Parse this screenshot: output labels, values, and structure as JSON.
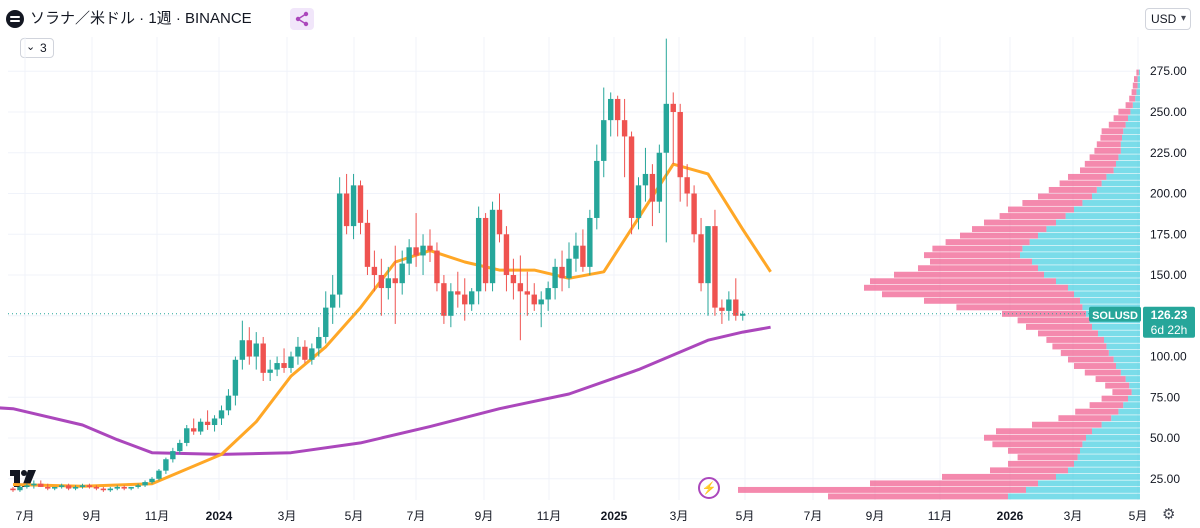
{
  "header": {
    "title": "ソラナ／米ドル · 1週 · BINANCE",
    "indicator_count": "3",
    "currency": "USD"
  },
  "colors": {
    "up": "#26a69a",
    "down": "#ef5350",
    "ma_short": "#ffa726",
    "ma_long": "#ab47bc",
    "vp_up": "#4dd0e1",
    "vp_down": "#f06292",
    "price_line": "#26a69a"
  },
  "price_label": {
    "symbol": "SOLUSD",
    "price": "126.23",
    "countdown": "6d 22h"
  },
  "chart_data": {
    "type": "candlestick",
    "title": "ソラナ／米ドル · 1週 · BINANCE",
    "x_tick_labels": [
      "7月",
      "9月",
      "11月",
      "2024",
      "3月",
      "5月",
      "7月",
      "9月",
      "11月",
      "2025",
      "3月",
      "5月",
      "7月",
      "9月",
      "11月",
      "2026",
      "3月",
      "5月"
    ],
    "bold_x_ticks": [
      "2024",
      "2025",
      "2026"
    ],
    "y_tick_labels": [
      "25.00",
      "50.00",
      "75.00",
      "100.00",
      "125.00",
      "150.00",
      "175.00",
      "200.00",
      "225.00",
      "250.00",
      "275.00"
    ],
    "ylim": [
      12,
      296
    ],
    "candles_ohlc": [
      [
        19,
        20,
        17,
        18
      ],
      [
        18,
        21,
        17,
        20
      ],
      [
        20,
        22,
        19,
        21
      ],
      [
        21,
        24,
        19,
        22
      ],
      [
        22,
        24,
        20,
        20
      ],
      [
        20,
        22,
        18,
        19
      ],
      [
        19,
        20,
        18,
        20
      ],
      [
        20,
        22,
        19,
        21
      ],
      [
        21,
        22,
        18,
        19
      ],
      [
        19,
        21,
        18,
        20
      ],
      [
        20,
        22,
        19,
        21
      ],
      [
        21,
        22,
        19,
        20
      ],
      [
        20,
        21,
        18,
        19
      ],
      [
        19,
        20,
        17,
        18
      ],
      [
        18,
        20,
        17,
        19
      ],
      [
        19,
        21,
        18,
        20
      ],
      [
        20,
        21,
        18,
        19
      ],
      [
        19,
        20,
        18,
        20
      ],
      [
        20,
        22,
        19,
        21
      ],
      [
        21,
        24,
        20,
        23
      ],
      [
        23,
        26,
        22,
        25
      ],
      [
        25,
        31,
        24,
        30
      ],
      [
        30,
        38,
        28,
        37
      ],
      [
        37,
        44,
        35,
        42
      ],
      [
        42,
        49,
        40,
        47
      ],
      [
        47,
        58,
        45,
        56
      ],
      [
        56,
        62,
        52,
        54
      ],
      [
        54,
        62,
        52,
        60
      ],
      [
        60,
        67,
        55,
        58
      ],
      [
        58,
        64,
        54,
        62
      ],
      [
        62,
        70,
        58,
        67
      ],
      [
        67,
        80,
        64,
        76
      ],
      [
        76,
        100,
        70,
        98
      ],
      [
        98,
        122,
        92,
        110
      ],
      [
        110,
        118,
        95,
        100
      ],
      [
        100,
        115,
        92,
        108
      ],
      [
        108,
        112,
        85,
        90
      ],
      [
        90,
        98,
        85,
        92
      ],
      [
        92,
        100,
        88,
        96
      ],
      [
        96,
        105,
        90,
        93
      ],
      [
        93,
        103,
        90,
        100
      ],
      [
        100,
        112,
        95,
        106
      ],
      [
        106,
        110,
        96,
        98
      ],
      [
        98,
        108,
        95,
        105
      ],
      [
        105,
        118,
        100,
        112
      ],
      [
        112,
        140,
        108,
        130
      ],
      [
        130,
        150,
        120,
        138
      ],
      [
        138,
        210,
        130,
        200
      ],
      [
        200,
        212,
        175,
        180
      ],
      [
        180,
        212,
        172,
        205
      ],
      [
        205,
        208,
        175,
        182
      ],
      [
        182,
        190,
        150,
        155
      ],
      [
        155,
        165,
        140,
        150
      ],
      [
        150,
        160,
        125,
        142
      ],
      [
        142,
        155,
        135,
        148
      ],
      [
        148,
        168,
        120,
        145
      ],
      [
        145,
        165,
        138,
        157
      ],
      [
        157,
        172,
        150,
        167
      ],
      [
        167,
        188,
        155,
        162
      ],
      [
        162,
        175,
        150,
        168
      ],
      [
        168,
        178,
        158,
        165
      ],
      [
        165,
        170,
        140,
        145
      ],
      [
        145,
        150,
        120,
        125
      ],
      [
        125,
        145,
        118,
        140
      ],
      [
        140,
        152,
        130,
        138
      ],
      [
        138,
        148,
        122,
        132
      ],
      [
        132,
        142,
        128,
        140
      ],
      [
        140,
        192,
        132,
        185
      ],
      [
        185,
        188,
        140,
        145
      ],
      [
        145,
        195,
        140,
        190
      ],
      [
        190,
        200,
        170,
        175
      ],
      [
        175,
        180,
        140,
        150
      ],
      [
        150,
        160,
        135,
        145
      ],
      [
        145,
        162,
        110,
        140
      ],
      [
        140,
        152,
        125,
        138
      ],
      [
        138,
        145,
        128,
        132
      ],
      [
        132,
        140,
        118,
        135
      ],
      [
        135,
        146,
        128,
        142
      ],
      [
        142,
        160,
        135,
        155
      ],
      [
        155,
        165,
        140,
        148
      ],
      [
        148,
        170,
        142,
        160
      ],
      [
        160,
        176,
        152,
        168
      ],
      [
        168,
        178,
        152,
        155
      ],
      [
        155,
        190,
        150,
        185
      ],
      [
        185,
        230,
        178,
        220
      ],
      [
        220,
        265,
        210,
        245
      ],
      [
        245,
        262,
        235,
        258
      ],
      [
        258,
        260,
        235,
        245
      ],
      [
        245,
        258,
        210,
        235
      ],
      [
        235,
        238,
        175,
        185
      ],
      [
        185,
        210,
        178,
        205
      ],
      [
        205,
        228,
        195,
        212
      ],
      [
        212,
        218,
        180,
        195
      ],
      [
        195,
        230,
        188,
        225
      ],
      [
        225,
        295,
        170,
        255
      ],
      [
        255,
        262,
        218,
        250
      ],
      [
        250,
        255,
        195,
        210
      ],
      [
        210,
        218,
        192,
        200
      ],
      [
        200,
        205,
        170,
        175
      ],
      [
        175,
        185,
        140,
        145
      ],
      [
        145,
        180,
        125,
        180
      ],
      [
        180,
        190,
        125,
        130
      ],
      [
        130,
        135,
        120,
        128
      ],
      [
        128,
        140,
        122,
        135
      ],
      [
        135,
        148,
        122,
        125
      ],
      [
        125,
        128,
        122,
        126.23
      ]
    ],
    "ma_short": [
      [
        0,
        21.5
      ],
      [
        10,
        20.4
      ],
      [
        20,
        22
      ],
      [
        30,
        40
      ],
      [
        35,
        60
      ],
      [
        40,
        88
      ],
      [
        45,
        106
      ],
      [
        50,
        130
      ],
      [
        55,
        158
      ],
      [
        60,
        165
      ],
      [
        65,
        158
      ],
      [
        70,
        153
      ],
      [
        75,
        153
      ],
      [
        80,
        148
      ],
      [
        85,
        152
      ],
      [
        90,
        185
      ],
      [
        95,
        218
      ],
      [
        100,
        212
      ],
      [
        105,
        178
      ],
      [
        109,
        152
      ]
    ],
    "ma_long": [
      [
        -12,
        71
      ],
      [
        0,
        68
      ],
      [
        10,
        58
      ],
      [
        15,
        49
      ],
      [
        20,
        41
      ],
      [
        30,
        40
      ],
      [
        40,
        41
      ],
      [
        50,
        47
      ],
      [
        60,
        57
      ],
      [
        70,
        68
      ],
      [
        80,
        77
      ],
      [
        90,
        92
      ],
      [
        100,
        110
      ],
      [
        105,
        115
      ],
      [
        109,
        118
      ]
    ],
    "volume_profile": [
      [
        276,
        1,
        2
      ],
      [
        272,
        2,
        3
      ],
      [
        268,
        2,
        4
      ],
      [
        264,
        3,
        4
      ],
      [
        260,
        4,
        5
      ],
      [
        256,
        6,
        6
      ],
      [
        252,
        8,
        10
      ],
      [
        248,
        10,
        12
      ],
      [
        244,
        12,
        14
      ],
      [
        240,
        14,
        18
      ],
      [
        236,
        15,
        18
      ],
      [
        232,
        16,
        20
      ],
      [
        228,
        16,
        22
      ],
      [
        224,
        18,
        24
      ],
      [
        220,
        20,
        26
      ],
      [
        216,
        22,
        28
      ],
      [
        212,
        28,
        32
      ],
      [
        208,
        32,
        35
      ],
      [
        204,
        36,
        40
      ],
      [
        200,
        40,
        45
      ],
      [
        196,
        48,
        50
      ],
      [
        192,
        55,
        55
      ],
      [
        188,
        62,
        55
      ],
      [
        184,
        70,
        60
      ],
      [
        180,
        78,
        62
      ],
      [
        176,
        85,
        65
      ],
      [
        172,
        92,
        70
      ],
      [
        168,
        98,
        75
      ],
      [
        164,
        100,
        80
      ],
      [
        160,
        90,
        85
      ],
      [
        156,
        85,
        100
      ],
      [
        152,
        80,
        125
      ],
      [
        148,
        70,
        155
      ],
      [
        144,
        60,
        170
      ],
      [
        140,
        55,
        160
      ],
      [
        136,
        50,
        130
      ],
      [
        132,
        48,
        105
      ],
      [
        128,
        45,
        70
      ],
      [
        124,
        42,
        60
      ],
      [
        120,
        40,
        55
      ],
      [
        116,
        35,
        50
      ],
      [
        112,
        30,
        48
      ],
      [
        108,
        28,
        45
      ],
      [
        104,
        26,
        40
      ],
      [
        100,
        22,
        38
      ],
      [
        96,
        20,
        35
      ],
      [
        92,
        16,
        30
      ],
      [
        88,
        12,
        25
      ],
      [
        84,
        9,
        20
      ],
      [
        80,
        7,
        16
      ],
      [
        76,
        10,
        22
      ],
      [
        72,
        14,
        28
      ],
      [
        68,
        18,
        36
      ],
      [
        64,
        24,
        44
      ],
      [
        60,
        32,
        58
      ],
      [
        56,
        40,
        80
      ],
      [
        52,
        45,
        85
      ],
      [
        48,
        48,
        75
      ],
      [
        44,
        50,
        60
      ],
      [
        40,
        52,
        50
      ],
      [
        36,
        55,
        55
      ],
      [
        32,
        60,
        65
      ],
      [
        28,
        70,
        95
      ],
      [
        24,
        85,
        140
      ],
      [
        20,
        95,
        240
      ],
      [
        16,
        110,
        150
      ]
    ],
    "last_price": 126.23
  }
}
